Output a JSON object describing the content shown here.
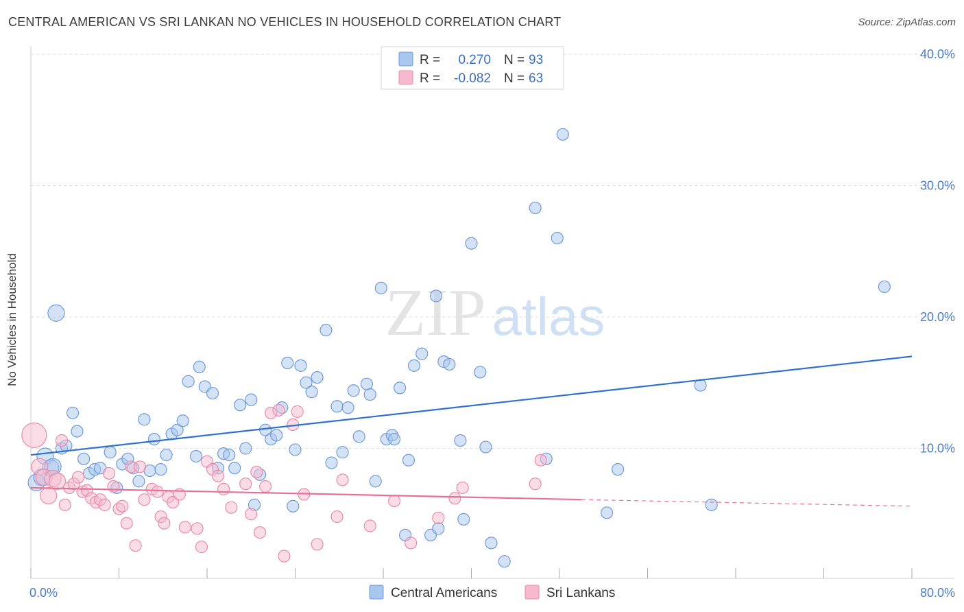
{
  "title": "CENTRAL AMERICAN VS SRI LANKAN NO VEHICLES IN HOUSEHOLD CORRELATION CHART",
  "source": "Source: ZipAtlas.com",
  "watermark": {
    "zip": "ZIP",
    "atlas": "atlas"
  },
  "colors": {
    "blue_fill": "#a9c6ee",
    "blue_stroke": "#6f9bd9",
    "blue_line": "#2f6fcf",
    "pink_fill": "#f6b9cd",
    "pink_stroke": "#e98bab",
    "pink_line": "#e86f98"
  },
  "chart_data": {
    "type": "scatter",
    "title": "CENTRAL AMERICAN VS SRI LANKAN NO VEHICLES IN HOUSEHOLD CORRELATION CHART",
    "ylabel": "No Vehicles in Household",
    "xlabel": "",
    "xlim": [
      0,
      80
    ],
    "ylim": [
      0,
      42
    ],
    "x_tick_labels": [
      {
        "value": 0,
        "label": "0.0%"
      },
      {
        "value": 80,
        "label": "80.0%"
      }
    ],
    "y_tick_labels": [
      {
        "value": 10,
        "label": "10.0%"
      },
      {
        "value": 20,
        "label": "20.0%"
      },
      {
        "value": 30,
        "label": "30.0%"
      },
      {
        "value": 40,
        "label": "40.0%"
      }
    ],
    "grid": "horizontal dashed",
    "legend_position": "bottom-center",
    "stats": [
      {
        "r_label": "R =",
        "r_value": "0.270",
        "n_label": "N =",
        "n_value": "93"
      },
      {
        "r_label": "R =",
        "r_value": "-0.082",
        "n_label": "N =",
        "n_value": "63"
      }
    ],
    "series": [
      {
        "name": "Central Americans",
        "color": "#a9c6ee",
        "trend": {
          "x0": 0,
          "y0": 9.5,
          "x1": 80,
          "y1": 17.0
        },
        "points": [
          [
            0.5,
            7.4
          ],
          [
            1.3,
            9.4
          ],
          [
            1.8,
            8.5
          ],
          [
            2.3,
            20.3
          ],
          [
            2.8,
            10.0
          ],
          [
            3.2,
            10.2
          ],
          [
            3.8,
            12.7
          ],
          [
            4.2,
            11.3
          ],
          [
            4.8,
            9.2
          ],
          [
            5.3,
            8.1
          ],
          [
            5.8,
            8.4
          ],
          [
            6.3,
            8.5
          ],
          [
            7.2,
            9.7
          ],
          [
            7.8,
            7.0
          ],
          [
            8.3,
            8.8
          ],
          [
            8.8,
            9.2
          ],
          [
            9.3,
            8.5
          ],
          [
            9.8,
            7.5
          ],
          [
            10.3,
            12.2
          ],
          [
            10.8,
            8.3
          ],
          [
            11.2,
            10.7
          ],
          [
            11.8,
            8.4
          ],
          [
            12.3,
            9.5
          ],
          [
            12.8,
            11.1
          ],
          [
            13.3,
            11.4
          ],
          [
            13.8,
            12.1
          ],
          [
            14.3,
            15.1
          ],
          [
            15.0,
            9.4
          ],
          [
            15.3,
            16.2
          ],
          [
            15.8,
            14.7
          ],
          [
            16.5,
            14.2
          ],
          [
            17.0,
            8.5
          ],
          [
            17.5,
            9.6
          ],
          [
            18.0,
            9.5
          ],
          [
            18.5,
            8.5
          ],
          [
            19.0,
            13.3
          ],
          [
            19.5,
            10.0
          ],
          [
            20.0,
            13.7
          ],
          [
            20.3,
            5.7
          ],
          [
            20.8,
            8.0
          ],
          [
            21.3,
            11.4
          ],
          [
            21.8,
            10.7
          ],
          [
            22.3,
            11.0
          ],
          [
            22.8,
            13.1
          ],
          [
            23.3,
            16.5
          ],
          [
            23.8,
            5.6
          ],
          [
            24.0,
            9.9
          ],
          [
            24.5,
            16.3
          ],
          [
            25.0,
            15.0
          ],
          [
            25.5,
            14.3
          ],
          [
            26.0,
            15.4
          ],
          [
            26.8,
            19.0
          ],
          [
            27.3,
            8.9
          ],
          [
            27.8,
            13.2
          ],
          [
            28.3,
            9.7
          ],
          [
            28.8,
            13.1
          ],
          [
            29.3,
            14.4
          ],
          [
            29.8,
            10.9
          ],
          [
            30.5,
            14.9
          ],
          [
            30.8,
            14.1
          ],
          [
            31.3,
            7.5
          ],
          [
            31.8,
            22.2
          ],
          [
            32.3,
            10.7
          ],
          [
            32.8,
            11.0
          ],
          [
            33.0,
            10.7
          ],
          [
            33.5,
            14.6
          ],
          [
            34.0,
            3.4
          ],
          [
            34.3,
            9.1
          ],
          [
            34.8,
            16.3
          ],
          [
            35.5,
            17.2
          ],
          [
            36.3,
            3.4
          ],
          [
            36.8,
            21.6
          ],
          [
            37.0,
            3.9
          ],
          [
            37.5,
            16.6
          ],
          [
            38.0,
            16.4
          ],
          [
            39.0,
            10.6
          ],
          [
            39.3,
            4.6
          ],
          [
            40.0,
            25.6
          ],
          [
            40.8,
            15.8
          ],
          [
            41.3,
            10.1
          ],
          [
            41.8,
            2.8
          ],
          [
            43.0,
            1.4
          ],
          [
            45.8,
            28.3
          ],
          [
            46.8,
            9.2
          ],
          [
            47.8,
            26.0
          ],
          [
            48.3,
            33.9
          ],
          [
            52.3,
            5.1
          ],
          [
            53.3,
            8.4
          ],
          [
            60.8,
            14.8
          ],
          [
            61.8,
            5.7
          ],
          [
            77.5,
            22.3
          ],
          [
            1.0,
            7.8
          ],
          [
            2.0,
            8.6
          ]
        ]
      },
      {
        "name": "Sri Lankans",
        "color": "#f6b9cd",
        "trend": {
          "x0": 0,
          "y0": 7.0,
          "x1": 50,
          "y1": 6.1
        },
        "trend_dashed": {
          "x0": 50,
          "y0": 6.1,
          "x1": 80,
          "y1": 5.6
        },
        "points": [
          [
            0.3,
            11.0
          ],
          [
            0.8,
            8.6
          ],
          [
            1.2,
            7.8
          ],
          [
            1.6,
            6.4
          ],
          [
            2.0,
            7.7
          ],
          [
            2.4,
            7.5
          ],
          [
            2.8,
            10.6
          ],
          [
            3.1,
            5.7
          ],
          [
            3.5,
            7.0
          ],
          [
            3.9,
            7.3
          ],
          [
            4.3,
            7.8
          ],
          [
            4.7,
            6.7
          ],
          [
            5.1,
            6.8
          ],
          [
            5.5,
            6.2
          ],
          [
            5.9,
            5.9
          ],
          [
            6.3,
            6.1
          ],
          [
            6.7,
            5.7
          ],
          [
            7.1,
            8.1
          ],
          [
            7.5,
            7.1
          ],
          [
            8.0,
            5.4
          ],
          [
            8.3,
            5.6
          ],
          [
            8.7,
            4.3
          ],
          [
            9.1,
            8.6
          ],
          [
            9.5,
            2.6
          ],
          [
            9.9,
            8.6
          ],
          [
            10.3,
            6.1
          ],
          [
            11.0,
            6.9
          ],
          [
            11.5,
            6.7
          ],
          [
            11.8,
            4.8
          ],
          [
            12.1,
            4.3
          ],
          [
            12.5,
            6.3
          ],
          [
            12.9,
            5.9
          ],
          [
            13.5,
            6.5
          ],
          [
            14.0,
            4.0
          ],
          [
            15.1,
            3.9
          ],
          [
            15.5,
            2.5
          ],
          [
            16.0,
            9.0
          ],
          [
            16.5,
            8.4
          ],
          [
            17.0,
            7.9
          ],
          [
            17.5,
            6.9
          ],
          [
            18.2,
            5.5
          ],
          [
            19.5,
            7.3
          ],
          [
            20.0,
            5.0
          ],
          [
            20.5,
            8.2
          ],
          [
            20.8,
            3.6
          ],
          [
            21.3,
            7.1
          ],
          [
            21.8,
            12.7
          ],
          [
            22.5,
            12.9
          ],
          [
            23.0,
            1.8
          ],
          [
            23.8,
            11.8
          ],
          [
            24.2,
            12.8
          ],
          [
            24.8,
            6.5
          ],
          [
            26.0,
            2.7
          ],
          [
            27.8,
            4.8
          ],
          [
            28.3,
            7.6
          ],
          [
            30.8,
            4.1
          ],
          [
            33.0,
            6.0
          ],
          [
            34.5,
            2.8
          ],
          [
            37.0,
            4.7
          ],
          [
            38.5,
            6.2
          ],
          [
            39.2,
            7.0
          ],
          [
            45.8,
            7.3
          ],
          [
            46.3,
            9.1
          ]
        ]
      }
    ]
  }
}
